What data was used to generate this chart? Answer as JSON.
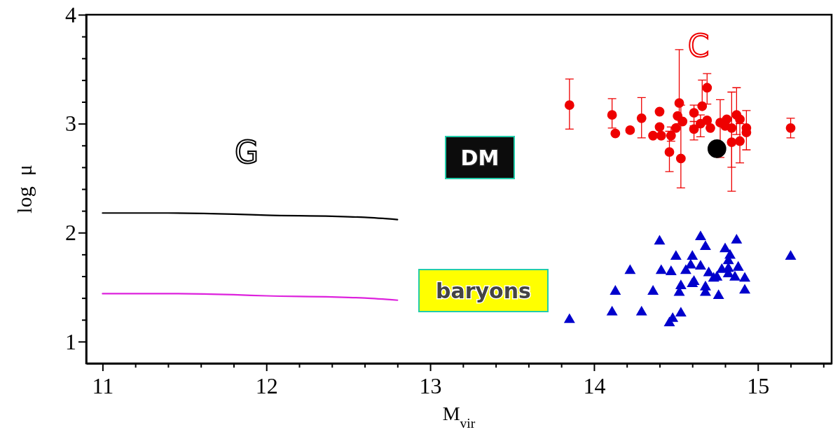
{
  "chart_data": {
    "type": "scatter",
    "xlabel": "M$_{vir}$",
    "ylabel": "log  μ",
    "xlim": [
      10.9,
      15.45
    ],
    "ylim": [
      0.8,
      4
    ],
    "xticks": [
      11,
      {
        "value": 11.2,
        "label": null
      },
      {
        "value": 11.4,
        "label": null
      },
      {
        "value": 11.6,
        "label": null
      },
      {
        "value": 11.8,
        "label": null
      },
      12,
      {
        "value": 12.2,
        "label": null
      },
      {
        "value": 12.4,
        "label": null
      },
      {
        "value": 12.6,
        "label": null
      },
      {
        "value": 12.8,
        "label": null
      },
      13,
      {
        "value": 13.2,
        "label": null
      },
      {
        "value": 13.4,
        "label": null
      },
      {
        "value": 13.6,
        "label": null
      },
      {
        "value": 13.8,
        "label": null
      },
      14,
      {
        "value": 14.2,
        "label": null
      },
      {
        "value": 14.4,
        "label": null
      },
      {
        "value": 14.6,
        "label": null
      },
      {
        "value": 14.8,
        "label": null
      },
      15,
      {
        "value": 15.2,
        "label": null
      },
      {
        "value": 15.4,
        "label": null
      }
    ],
    "yticks": [
      1,
      {
        "value": 1.2,
        "label": null
      },
      {
        "value": 1.4,
        "label": null
      },
      {
        "value": 1.6,
        "label": null
      },
      {
        "value": 1.8,
        "label": null
      },
      2,
      {
        "value": 2.2,
        "label": null
      },
      {
        "value": 2.4,
        "label": null
      },
      {
        "value": 2.6,
        "label": null
      },
      {
        "value": 2.8,
        "label": null
      },
      3,
      {
        "value": 3.2,
        "label": null
      },
      {
        "value": 3.4,
        "label": null
      },
      {
        "value": 3.6,
        "label": null
      },
      {
        "value": 3.8,
        "label": null
      },
      4
    ],
    "grid": false,
    "series": [
      {
        "type": "line",
        "color": "#000000",
        "marker": "none",
        "x": [
          11,
          11.4,
          11.8,
          12,
          12.4,
          12.6,
          12.8
        ],
        "values": [
          2.18,
          2.18,
          2.17,
          2.16,
          2.15,
          2.14,
          2.12
        ]
      },
      {
        "type": "line",
        "color": "#dd22dd",
        "marker": "none",
        "x": [
          11,
          11.4,
          11.8,
          12,
          12.4,
          12.6,
          12.8
        ],
        "values": [
          1.44,
          1.44,
          1.43,
          1.42,
          1.41,
          1.4,
          1.38
        ]
      },
      {
        "color": "#ee0000",
        "marker": "circle",
        "x": [
          13.85,
          14.11,
          14.13,
          14.22,
          14.29,
          14.4,
          14.4,
          14.36,
          14.41,
          14.47,
          14.46,
          14.5,
          14.51,
          14.52,
          14.53,
          14.54,
          14.61,
          14.61,
          14.66,
          14.69,
          14.69,
          14.65,
          14.71,
          14.77,
          14.81,
          14.8,
          14.84,
          14.84,
          14.87,
          14.89,
          14.89,
          14.93,
          14.93,
          15.2
        ],
        "values": [
          3.17,
          3.08,
          2.91,
          2.94,
          3.05,
          3.11,
          2.97,
          2.89,
          2.89,
          2.89,
          2.74,
          2.96,
          3.07,
          3.19,
          2.68,
          3.02,
          3.1,
          2.95,
          3.16,
          3.33,
          3.03,
          3.0,
          2.96,
          3.01,
          3.04,
          2.98,
          2.96,
          2.83,
          3.08,
          3.04,
          2.84,
          2.96,
          2.92,
          2.96
        ],
        "errors": [
          [
            2.95,
            3.41
          ],
          [
            2.96,
            3.23
          ],
          null,
          null,
          [
            2.87,
            3.24
          ],
          null,
          null,
          null,
          null,
          [
            2.84,
            2.97
          ],
          [
            2.56,
            2.93
          ],
          null,
          null,
          [
            3.0,
            3.68
          ],
          [
            2.41,
            3.17
          ],
          null,
          [
            2.98,
            3.17
          ],
          [
            2.85,
            3.02
          ],
          [
            3.16,
            3.4
          ],
          [
            3.18,
            3.46
          ],
          null,
          [
            2.88,
            3.08
          ],
          null,
          [
            2.69,
            3.22
          ],
          null,
          null,
          [
            2.6,
            3.29
          ],
          [
            2.38,
            2.98
          ],
          [
            2.9,
            3.33
          ],
          null,
          [
            2.64,
            3.0
          ],
          [
            2.76,
            3.12
          ],
          null,
          [
            2.87,
            3.05
          ]
        ]
      },
      {
        "color": "#000000",
        "marker": "circle",
        "x": [
          14.75
        ],
        "values": [
          2.77
        ]
      },
      {
        "color": "#0000cc",
        "marker": "triangle",
        "x": [
          13.85,
          14.11,
          14.13,
          14.22,
          14.29,
          14.36,
          14.4,
          14.41,
          14.47,
          14.48,
          14.46,
          14.5,
          14.52,
          14.53,
          14.53,
          14.56,
          14.59,
          14.6,
          14.6,
          14.61,
          14.65,
          14.65,
          14.68,
          14.68,
          14.68,
          14.7,
          14.73,
          14.75,
          14.76,
          14.78,
          14.8,
          14.83,
          14.82,
          14.82,
          14.82,
          14.86,
          14.87,
          14.88,
          14.92,
          14.92,
          15.2
        ],
        "values": [
          1.2,
          1.27,
          1.46,
          1.65,
          1.27,
          1.46,
          1.92,
          1.65,
          1.64,
          1.21,
          1.17,
          1.78,
          1.45,
          1.51,
          1.26,
          1.65,
          1.7,
          1.78,
          1.53,
          1.55,
          1.96,
          1.69,
          1.87,
          1.5,
          1.45,
          1.63,
          1.58,
          1.59,
          1.42,
          1.66,
          1.85,
          1.79,
          1.74,
          1.67,
          1.62,
          1.59,
          1.93,
          1.68,
          1.58,
          1.47,
          1.78
        ]
      }
    ],
    "annotations": [
      "G",
      "C",
      "DM",
      "baryons"
    ]
  }
}
